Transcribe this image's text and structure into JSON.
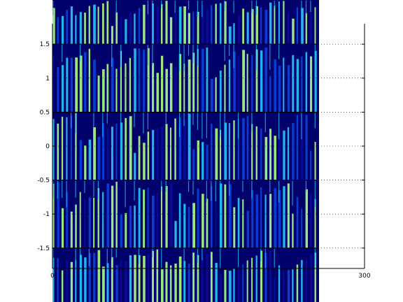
{
  "chart_data": {
    "type": "heatmap",
    "title": "",
    "xlabel": "",
    "ylabel": "",
    "xlim": [
      0,
      300
    ],
    "ylim": [
      -1.8,
      1.8
    ],
    "xticks": [
      "0",
      "300"
    ],
    "yticks": [
      "-1.5",
      "-1",
      "-0.5",
      "0",
      "0.5",
      "1",
      "1.5"
    ],
    "ytick_values": [
      -1.5,
      -1,
      -0.5,
      0,
      0.5,
      1,
      1.5
    ],
    "grid": "dotted",
    "band_boundaries": [
      1.5,
      0.5,
      -0.5,
      -1.5
    ],
    "image_x_extent": [
      0,
      300
    ],
    "colormap": "jet",
    "colors": {
      "background": "#ffffff",
      "axis": "#000000",
      "dark": "#00006a",
      "blue": "#0a3cd2",
      "cyan": "#23b4f0",
      "green": "#9be682"
    }
  }
}
